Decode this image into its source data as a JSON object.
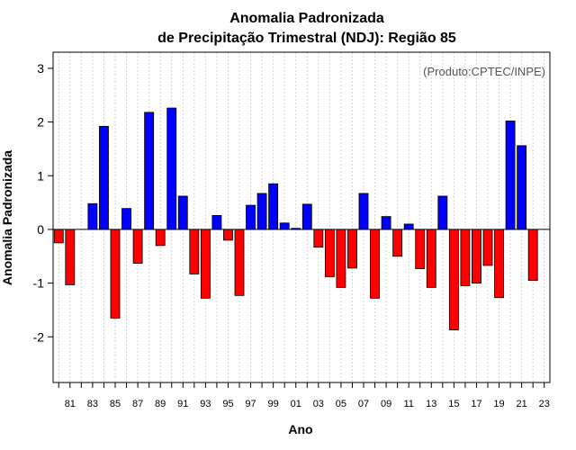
{
  "chart_data": {
    "type": "bar",
    "title_line1": "Anomalia Padronizada",
    "title_line2": "de Precipitação Trimestral (NDJ): Região 85",
    "xlabel": "Ano",
    "ylabel": "Anomalia Padronizada",
    "source_note": "(Produto:CPTEC/INPE)",
    "ylim": [
      -2.85,
      3.3
    ],
    "yticks": [
      -2,
      -1,
      0,
      1,
      2,
      3
    ],
    "ytick_labels": [
      "-2",
      "-1",
      "0",
      "1",
      "2",
      "3"
    ],
    "xlim": [
      -0.5,
      43.5
    ],
    "xtick_labels": [
      "81",
      "83",
      "85",
      "87",
      "89",
      "91",
      "93",
      "95",
      "97",
      "99",
      "01",
      "03",
      "05",
      "07",
      "09",
      "11",
      "13",
      "15",
      "17",
      "19",
      "21",
      "23"
    ],
    "grid": true,
    "positive_color": "#0000ff",
    "negative_color": "#ff0000",
    "categories": [
      "80",
      "81",
      "82",
      "83",
      "84",
      "85",
      "86",
      "87",
      "88",
      "89",
      "90",
      "91",
      "92",
      "93",
      "94",
      "95",
      "96",
      "97",
      "98",
      "99",
      "00",
      "01",
      "02",
      "03",
      "04",
      "05",
      "06",
      "07",
      "08",
      "09",
      "10",
      "11",
      "12",
      "13",
      "14",
      "15",
      "16",
      "17",
      "18",
      "19",
      "20",
      "21",
      "22",
      "23"
    ],
    "values": [
      -0.25,
      -1.03,
      0,
      0.48,
      1.92,
      -1.65,
      0.39,
      -0.63,
      2.18,
      -0.3,
      2.26,
      0.62,
      -0.83,
      -1.28,
      0.26,
      -0.2,
      -1.23,
      0.45,
      0.67,
      0.85,
      0.12,
      0.02,
      0.47,
      -0.33,
      -0.88,
      -1.08,
      -0.72,
      0.67,
      -1.28,
      0.24,
      -0.5,
      0.1,
      -0.73,
      -1.08,
      0.62,
      -1.87,
      -1.05,
      -1.0,
      -0.67,
      -1.27,
      2.02,
      1.56,
      -0.95,
      0
    ]
  }
}
